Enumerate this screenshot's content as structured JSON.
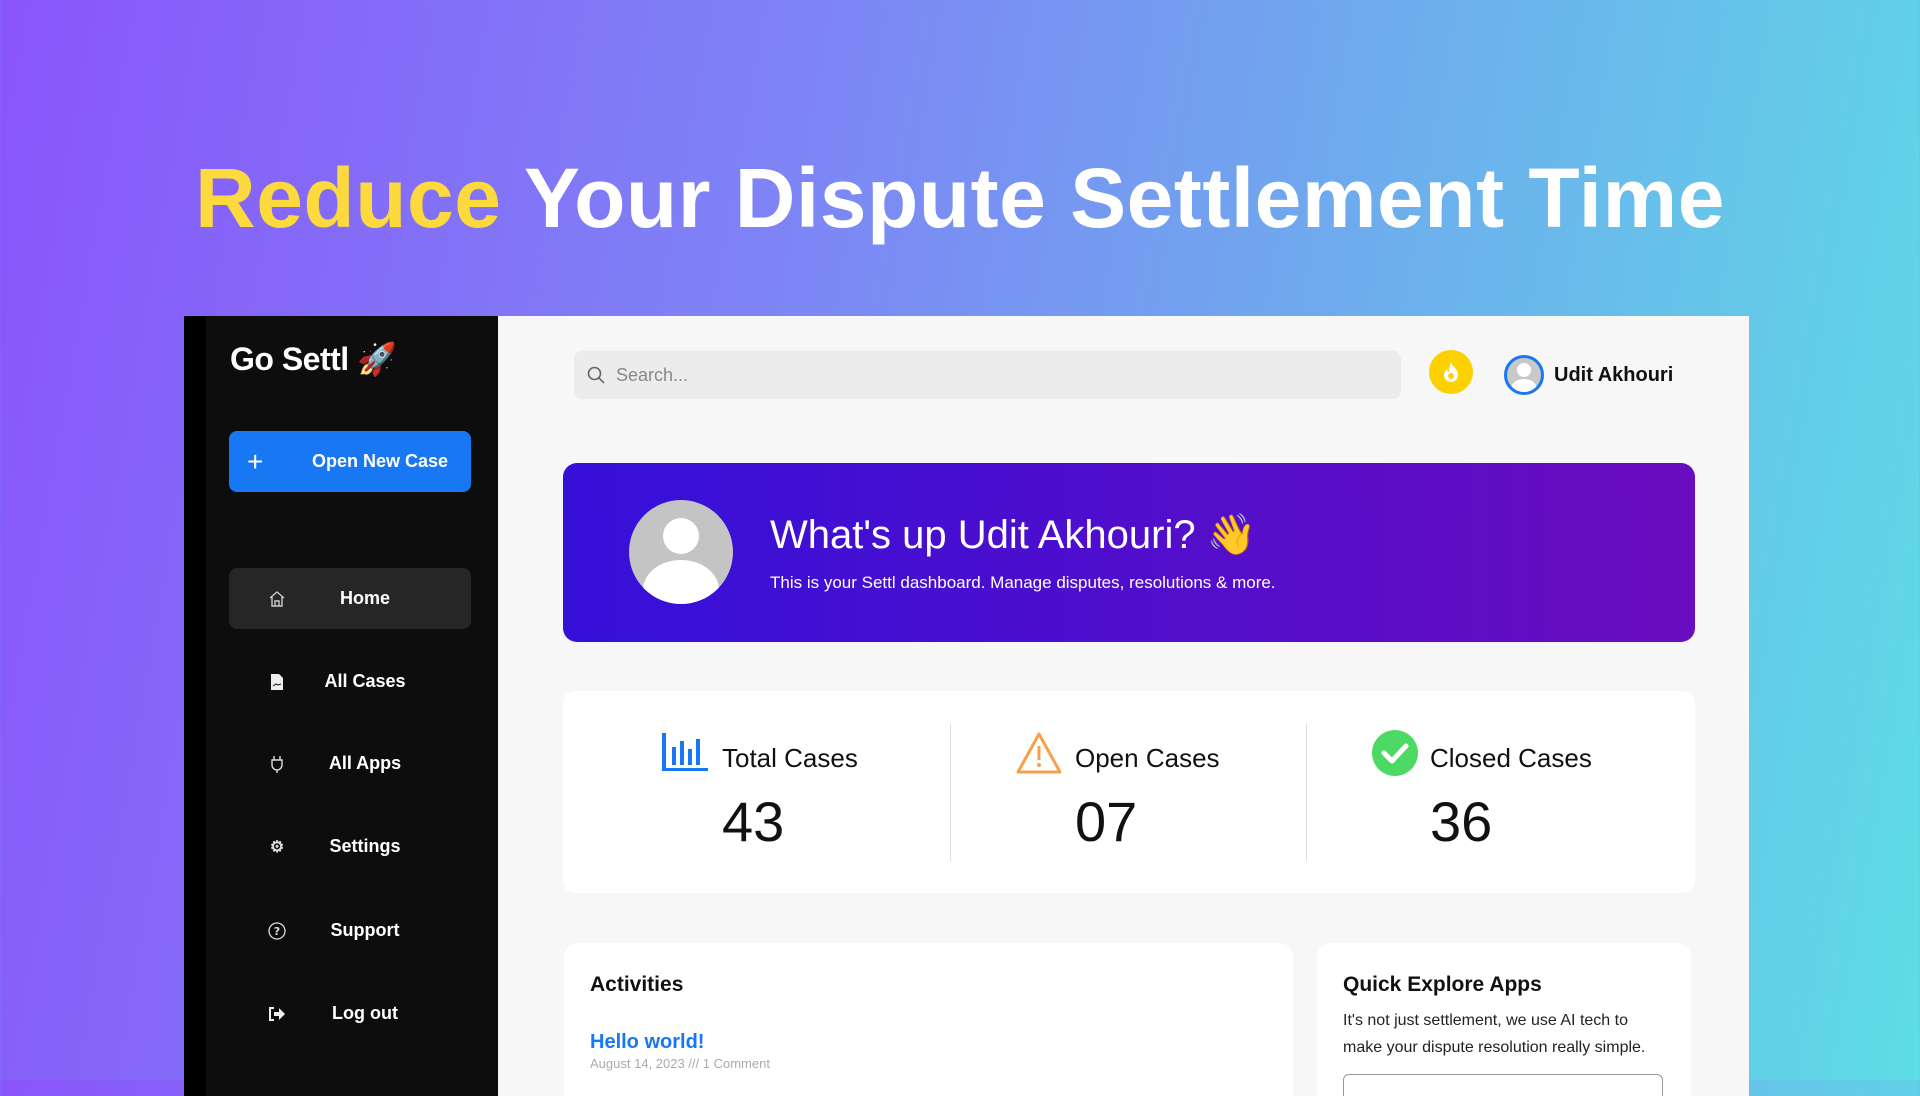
{
  "headline": {
    "highlight": "Reduce",
    "rest": "Your Dispute Settlement Time"
  },
  "sidebar": {
    "logo": "Go Settl",
    "logo_emoji": "🚀",
    "new_case_label": "Open New Case",
    "items": [
      {
        "label": "Home",
        "icon": "home-icon"
      },
      {
        "label": "All Cases",
        "icon": "document-icon"
      },
      {
        "label": "All Apps",
        "icon": "plug-icon"
      },
      {
        "label": "Settings",
        "icon": "gear-icon"
      },
      {
        "label": "Support",
        "icon": "help-icon"
      },
      {
        "label": "Log out",
        "icon": "logout-icon"
      }
    ]
  },
  "header": {
    "search_placeholder": "Search...",
    "user_name": "Udit Akhouri"
  },
  "banner": {
    "greeting": "What's up Udit Akhouri? 👋",
    "subtitle": "This is your Settl dashboard. Manage disputes, resolutions & more."
  },
  "stats": [
    {
      "label": "Total Cases",
      "value": "43",
      "color": "#1877f2"
    },
    {
      "label": "Open Cases",
      "value": "07",
      "color": "#f5a04a"
    },
    {
      "label": "Closed Cases",
      "value": "36",
      "color": "#4cd964"
    }
  ],
  "activities": {
    "title": "Activities",
    "post_title": "Hello world!",
    "post_meta": "August 14, 2023 /// 1 Comment"
  },
  "quick_apps": {
    "title": "Quick Explore Apps",
    "description": "It's not just settlement, we use AI tech to make your dispute resolution really simple."
  }
}
